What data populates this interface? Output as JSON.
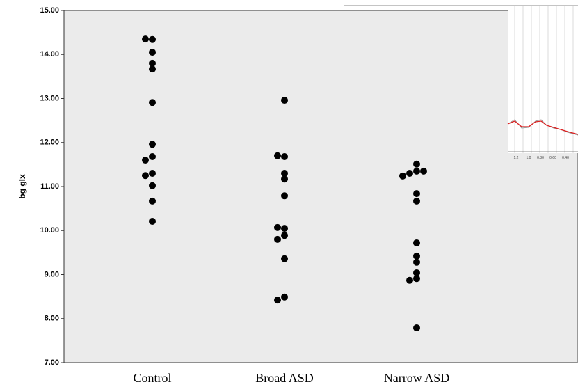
{
  "chart_data": {
    "type": "strip",
    "y_label": "bg glx",
    "categories": [
      "Control",
      "Broad ASD",
      "Narrow ASD"
    ],
    "groups": [
      [
        14.34,
        14.35,
        14.05,
        13.8,
        13.67,
        12.91,
        11.96,
        11.68,
        11.6,
        11.3,
        11.25,
        11.02,
        10.67,
        10.21
      ],
      [
        12.96,
        11.68,
        11.7,
        11.3,
        11.17,
        10.79,
        10.05,
        10.07,
        9.89,
        9.8,
        9.36,
        8.49,
        8.42
      ],
      [
        11.51,
        11.35,
        11.3,
        11.35,
        11.24,
        10.84,
        10.67,
        9.72,
        9.42,
        9.28,
        9.04,
        8.91,
        8.87,
        7.79
      ]
    ],
    "color": "#000000",
    "ylim": [
      7,
      15
    ],
    "yticks": [
      {
        "value": 7,
        "label": "7.00"
      },
      {
        "value": 8,
        "label": "8.00"
      },
      {
        "value": 9,
        "label": "9.00"
      },
      {
        "value": 10,
        "label": "10.00"
      },
      {
        "value": 11,
        "label": "11.00"
      },
      {
        "value": 12,
        "label": "12.00"
      },
      {
        "value": 13,
        "label": "13.00"
      },
      {
        "value": 14,
        "label": "14.00"
      },
      {
        "value": 15,
        "label": "15.00"
      }
    ]
  },
  "inset": {
    "tick_labels": [
      "1.2",
      "1.0",
      "0.80",
      "0.60",
      "0.40"
    ]
  }
}
